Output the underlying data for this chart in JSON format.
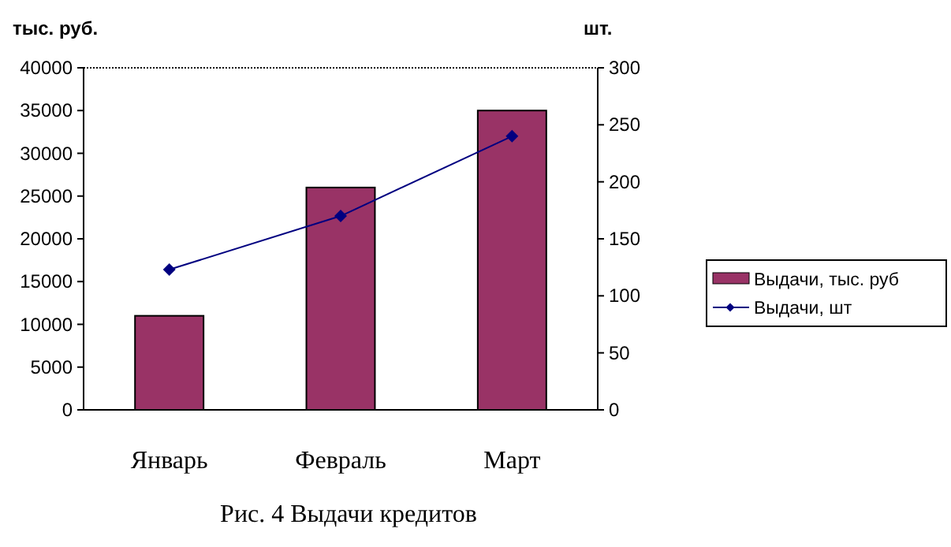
{
  "chart_data": {
    "type": "bar",
    "title": "Рис. 4 Выдачи кредитов",
    "ylabel": "тыс. руб.",
    "y2label": "шт.",
    "categories": [
      "Январь",
      "Февраль",
      "Март"
    ],
    "series": [
      {
        "name": "Выдачи, тыс. руб",
        "color": "#993366",
        "values": [
          11000,
          26000,
          35000
        ]
      },
      {
        "name": "Выдачи, шт",
        "type": "line",
        "axis": "y2",
        "color": "#000080",
        "values": [
          123,
          170,
          240
        ],
        "marker": "diamond"
      }
    ],
    "ylim": [
      0,
      40000
    ],
    "yticks": [
      0,
      5000,
      10000,
      15000,
      20000,
      25000,
      30000,
      35000,
      40000
    ],
    "y2lim": [
      0,
      300
    ],
    "y2ticks": [
      0,
      50,
      100,
      150,
      200,
      250,
      300
    ],
    "grid": false,
    "legend": "right"
  }
}
